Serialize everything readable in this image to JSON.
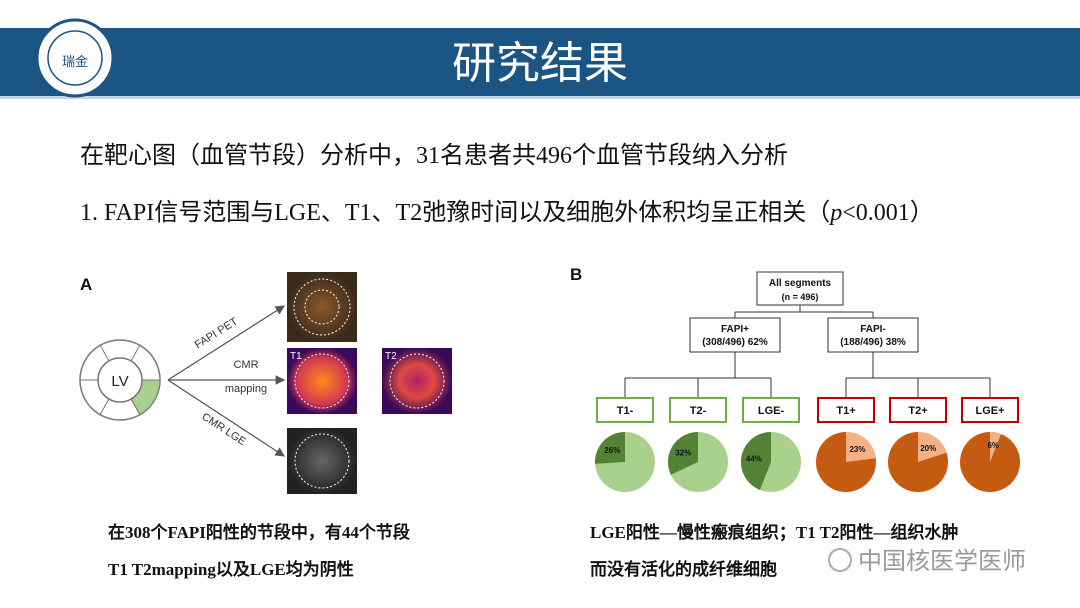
{
  "header": {
    "title": "研究结果",
    "logo_label": "瑞金"
  },
  "body": {
    "line1": "在靶心图（血管节段）分析中，31名患者共496个血管节段纳入分析",
    "line2": {
      "prefix": "1.  FAPI信号范围与LGE、T1、T2弛豫时间以及细胞外体积均呈正相关（",
      "italic": "p",
      "suffix": "<0.001）"
    }
  },
  "panel_a": {
    "label": "A",
    "lv": "LV",
    "arrow_labels": [
      "FAPI PET",
      "CMR",
      "mapping",
      "CMR LGE"
    ],
    "image_labels": [
      "T1",
      "T2"
    ]
  },
  "panel_b": {
    "label": "B",
    "root": [
      "All segments",
      "(n = 496)"
    ],
    "branches": [
      [
        "FAPI+",
        "(308/496) 62%"
      ],
      [
        "FAPI-",
        "(188/496) 38%"
      ]
    ],
    "leaves": [
      "T1-",
      "T2-",
      "LGE-",
      "T1+",
      "T2+",
      "LGE+"
    ],
    "pies": [
      {
        "value": 26,
        "value_label": "26%",
        "color": "#548235",
        "base_color": "#a9d18e",
        "border": "#70ad47"
      },
      {
        "value": 32,
        "value_label": "32%",
        "color": "#548235",
        "base_color": "#a9d18e",
        "border": "#70ad47"
      },
      {
        "value": 44,
        "value_label": "44%",
        "color": "#548235",
        "base_color": "#a9d18e",
        "border": "#70ad47"
      },
      {
        "value": 23,
        "value_label": "23%",
        "color": "#f4b183",
        "base_color": "#c55a11",
        "border": "#c00000"
      },
      {
        "value": 20,
        "value_label": "20%",
        "color": "#f4b183",
        "base_color": "#c55a11",
        "border": "#c00000"
      },
      {
        "value": 6,
        "value_label": "6%",
        "color": "#f4b183",
        "base_color": "#c55a11",
        "border": "#c00000"
      }
    ]
  },
  "captions": {
    "left": [
      "在308个FAPI阳性的节段中，有44个节段",
      "T1 T2mapping以及LGE均为阴性"
    ],
    "right": [
      "LGE阳性—慢性瘢痕组织；T1 T2阳性—组织水肿",
      "而没有活化的成纤维细胞"
    ]
  },
  "watermark": "中国核医学医师"
}
